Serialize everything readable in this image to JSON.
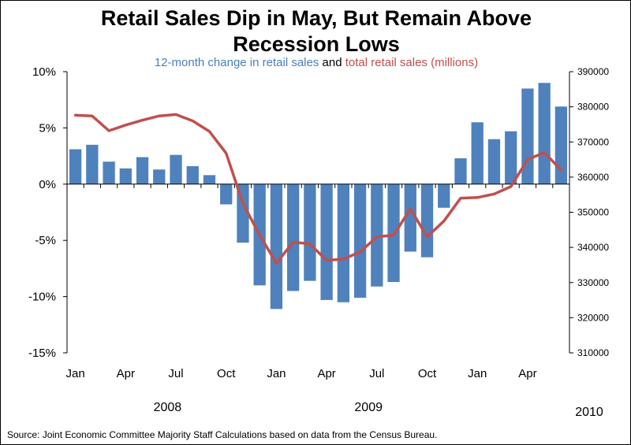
{
  "title_line1": "Retail Sales Dip in May, But Remain Above",
  "title_line2": "Recession Lows",
  "subtitle": {
    "part1": "12-month change in retail sales",
    "part2": " and ",
    "part3": "total retail sales (millions)"
  },
  "source": "Source: Joint Economic Committee Majority Staff Calculations based on data from the Census Bureau.",
  "colors": {
    "bars": "#4f81bd",
    "line": "#c0504d",
    "subtitle_blue": "#4a7ebb"
  },
  "chart_data": {
    "type": "bar+line",
    "x": [
      "2008-01",
      "2008-02",
      "2008-03",
      "2008-04",
      "2008-05",
      "2008-06",
      "2008-07",
      "2008-08",
      "2008-09",
      "2008-10",
      "2008-11",
      "2008-12",
      "2009-01",
      "2009-02",
      "2009-03",
      "2009-04",
      "2009-05",
      "2009-06",
      "2009-07",
      "2009-08",
      "2009-09",
      "2009-10",
      "2009-11",
      "2009-12",
      "2010-01",
      "2010-02",
      "2010-03",
      "2010-04",
      "2010-05",
      "2010-06"
    ],
    "month_ticks": [
      "Jan",
      "Apr",
      "Jul",
      "Oct",
      "Jan",
      "Apr",
      "Jul",
      "Oct",
      "Jan",
      "Apr"
    ],
    "year_labels": [
      "2008",
      "2009",
      "2010"
    ],
    "series": [
      {
        "name": "12-month change in retail sales",
        "type": "bar",
        "axis": "left",
        "values": [
          3.1,
          3.5,
          2.0,
          1.4,
          2.4,
          1.3,
          2.6,
          1.6,
          0.8,
          -1.8,
          -5.2,
          -9.0,
          -11.1,
          -9.5,
          -8.6,
          -10.3,
          -10.5,
          -10.1,
          -9.1,
          -8.7,
          -6.0,
          -6.5,
          -2.1,
          2.3,
          5.5,
          4.0,
          4.7,
          8.5,
          9.0,
          6.9
        ]
      },
      {
        "name": "total retail sales (millions)",
        "type": "line",
        "axis": "right",
        "values": [
          377600,
          377400,
          373200,
          374800,
          376200,
          377400,
          377800,
          376000,
          373000,
          366800,
          352500,
          343500,
          335500,
          341500,
          341000,
          336300,
          336700,
          338700,
          343000,
          343500,
          351000,
          343000,
          347500,
          354000,
          354200,
          355200,
          357300,
          365000,
          367000,
          362000
        ]
      }
    ],
    "y_left": {
      "min": -15,
      "max": 10,
      "ticks": [
        "-15%",
        "-10%",
        "-5%",
        "0%",
        "5%",
        "10%"
      ]
    },
    "y_right": {
      "min": 310000,
      "max": 390000,
      "ticks": [
        "310000",
        "320000",
        "330000",
        "340000",
        "350000",
        "360000",
        "370000",
        "380000",
        "390000"
      ]
    }
  }
}
